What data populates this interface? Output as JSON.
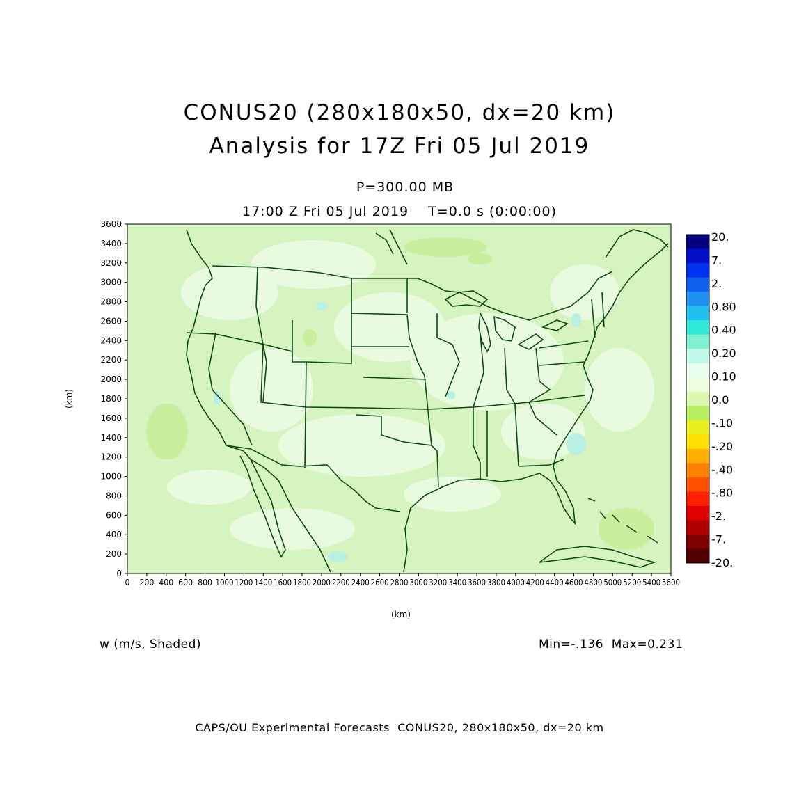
{
  "title_line1": "CONUS20 (280x180x50, dx=20 km)",
  "title_line2": "Analysis for 17Z Fri 05 Jul 2019",
  "level": "P=300.00 MB",
  "time_line": "17:00 Z Fri 05 Jul 2019    T=0.0 s (0:00:00)",
  "y_axis_label": "(km)",
  "x_axis_label": "(km)",
  "y_ticks": [
    "0",
    "200",
    "400",
    "600",
    "800",
    "1000",
    "1200",
    "1400",
    "1600",
    "1800",
    "2000",
    "2200",
    "2400",
    "2600",
    "2800",
    "3000",
    "3200",
    "3400",
    "3600"
  ],
  "x_ticks": [
    "0",
    "200",
    "400",
    "600",
    "800",
    "1000",
    "1200",
    "1400",
    "1600",
    "1800",
    "2000",
    "2200",
    "2400",
    "2600",
    "2800",
    "3000",
    "3200",
    "3400",
    "3600",
    "3800",
    "4000",
    "4200",
    "4400",
    "4600",
    "4800",
    "5000",
    "5200",
    "5400",
    "5600"
  ],
  "field_label": "w (m/s, Shaded)",
  "min_max": "Min=-.136  Max=0.231",
  "footer": "CAPS/OU Experimental Forecasts  CONUS20, 280x180x50, dx=20 km",
  "colorbar": {
    "labels": [
      "20.",
      "7.",
      "2.",
      "0.80",
      "0.40",
      "0.20",
      "0.10",
      "0.0",
      "-.10",
      "-.20",
      "-.40",
      "-.80",
      "-2.",
      "-7.",
      "-20."
    ],
    "colors": [
      "#000080",
      "#0010c8",
      "#0030f0",
      "#1060f0",
      "#2090f0",
      "#20c0f0",
      "#30e8d8",
      "#80f0d0",
      "#c0f8e8",
      "#e8fff0",
      "#f0ffe0",
      "#d8f8b0",
      "#b8f060",
      "#e8f020",
      "#ffe000",
      "#ffb000",
      "#ff8000",
      "#ff5000",
      "#ff2000",
      "#e00000",
      "#b00000",
      "#800000",
      "#500000"
    ]
  },
  "colors": {
    "field_background": "#d8f5c0",
    "land_light": "#e8fbdc",
    "boundary": "#0b4a12"
  }
}
